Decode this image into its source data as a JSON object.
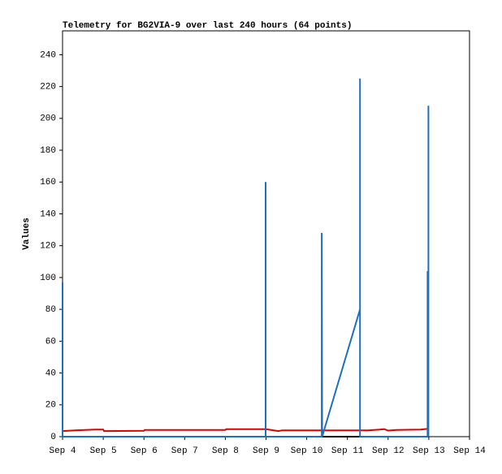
{
  "chart_data": {
    "type": "line",
    "title": "Telemetry for BG2VIA-9 over last 240 hours (64 points)",
    "y_label": "Values",
    "xlim": [
      4,
      14
    ],
    "xticks": [
      {
        "value": 4,
        "label": "Sep 4"
      },
      {
        "value": 5,
        "label": "Sep 5"
      },
      {
        "value": 6,
        "label": "Sep 6"
      },
      {
        "value": 7,
        "label": "Sep 7"
      },
      {
        "value": 8,
        "label": "Sep 8"
      },
      {
        "value": 9,
        "label": "Sep 9"
      },
      {
        "value": 10,
        "label": "Sep 10"
      },
      {
        "value": 11,
        "label": "Sep 11"
      },
      {
        "value": 12,
        "label": "Sep 12"
      },
      {
        "value": 13,
        "label": "Sep 13"
      },
      {
        "value": 14,
        "label": "Sep 14"
      }
    ],
    "ylim": [
      0,
      255
    ],
    "yticks": [
      0,
      20,
      40,
      60,
      80,
      100,
      120,
      140,
      160,
      180,
      200,
      220,
      240
    ],
    "series": [
      {
        "color": "#000000",
        "x": [
          4,
          12.98
        ],
        "values": [
          0,
          0
        ]
      },
      {
        "color": "#dd0000",
        "x": [
          4.0,
          4.3,
          4.8,
          5.0,
          5.02,
          6.0,
          6.02,
          8.0,
          8.02,
          9.0,
          9.3,
          9.4,
          11.5,
          11.8,
          11.9,
          12.0,
          12.2,
          12.8,
          12.98
        ],
        "values": [
          3.5,
          4,
          4.5,
          4.5,
          3.5,
          3.7,
          4.2,
          4.2,
          4.7,
          4.7,
          3.5,
          4,
          4,
          4.5,
          4.8,
          3.8,
          4.2,
          4.5,
          5
        ]
      },
      {
        "color": "#1f6fbf",
        "x": [
          4.0,
          4.0,
          8.99,
          8.99,
          8.99,
          10.37,
          10.37,
          10.38,
          11.31,
          11.31,
          11.31,
          12.97,
          12.97,
          12.99,
          12.99
        ],
        "values": [
          97,
          0,
          0,
          160,
          0,
          0,
          128,
          0,
          80,
          225,
          0,
          0,
          104,
          0,
          208
        ]
      }
    ]
  }
}
